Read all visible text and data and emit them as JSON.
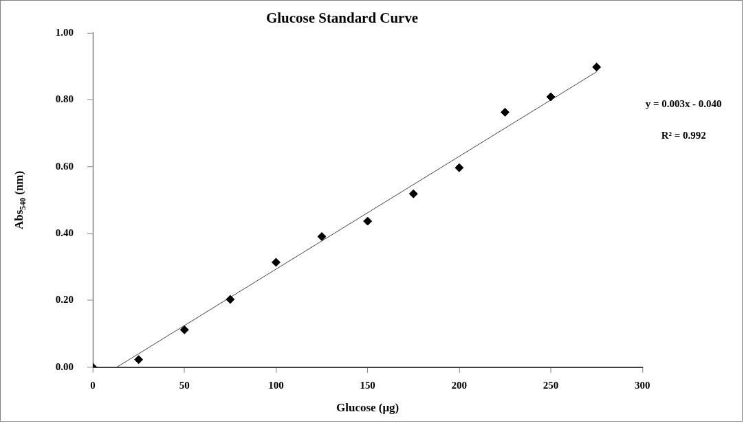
{
  "chart_data": {
    "type": "scatter",
    "title": "Glucose Standard Curve",
    "xlabel": "Glucose (μg)",
    "ylabel": "Abs$_{540}$ (nm)",
    "x": [
      0,
      25,
      50,
      75,
      100,
      125,
      150,
      175,
      200,
      225,
      250,
      275
    ],
    "series": [
      {
        "color": "#000000",
        "marker": "diamond",
        "values": [
          0,
          0.023,
          0.112,
          0.203,
          0.314,
          0.391,
          0.437,
          0.519,
          0.597,
          0.763,
          0.809,
          0.898
        ]
      },
      {
        "type": "line",
        "color": "#404040",
        "marker": "none",
        "x": [
          13,
          275
        ],
        "values": [
          0,
          0.884
        ]
      }
    ],
    "xlim": [
      0,
      300
    ],
    "xticks": [
      0,
      50,
      100,
      150,
      200,
      250,
      300
    ],
    "ylim": [
      0,
      1
    ],
    "yticks": [
      {
        "value": 0,
        "label": "0.00"
      },
      {
        "value": 0.2,
        "label": "0.20"
      },
      {
        "value": 0.4,
        "label": "0.40"
      },
      {
        "value": 0.6,
        "label": "0.60"
      },
      {
        "value": 0.8,
        "label": "0.80"
      },
      {
        "value": 1,
        "label": "1.00"
      }
    ],
    "grid": false,
    "legend": false,
    "annotations": [
      "y = 0.003x - 0.040",
      "R² = 0.992"
    ]
  }
}
